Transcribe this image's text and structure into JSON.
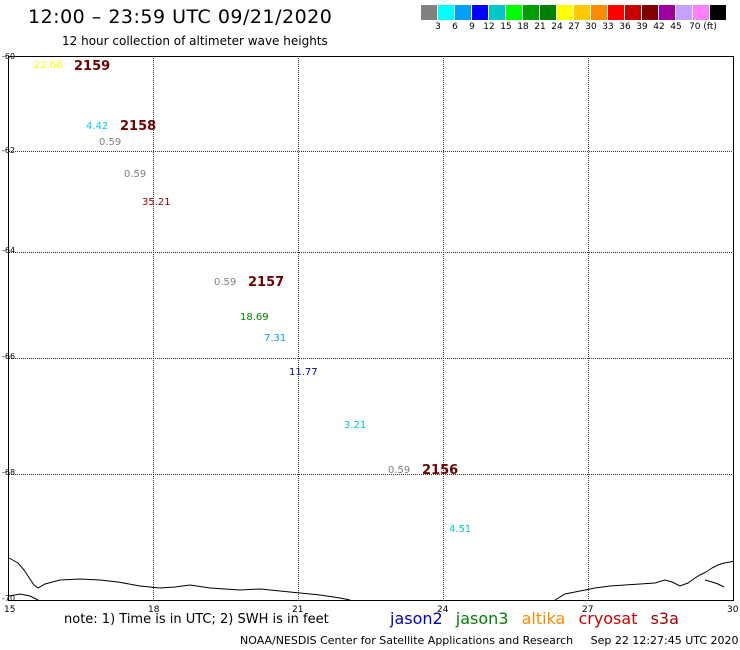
{
  "header": {
    "title": "12:00 – 23:59 UTC 09/21/2020",
    "subtitle": "12 hour collection of altimeter wave heights"
  },
  "legend": {
    "colors": [
      "#808080",
      "#00ffff",
      "#00a0ff",
      "#0000ff",
      "#00c8c8",
      "#00ff00",
      "#00a000",
      "#008000",
      "#ffff00",
      "#ffc800",
      "#ff8c00",
      "#ff0000",
      "#c80000",
      "#800000",
      "#a000a0",
      "#c8a0ff",
      "#ff80ff",
      "#000000"
    ],
    "ticks": [
      "3",
      "6",
      "9",
      "12",
      "15",
      "18",
      "21",
      "24",
      "27",
      "30",
      "33",
      "36",
      "39",
      "42",
      "45",
      "70 (ft)"
    ]
  },
  "axes": {
    "y_ticks": [
      "-60",
      "-62",
      "-64",
      "-66",
      "-68",
      "-70"
    ],
    "x_ticks": [
      "15",
      "18",
      "21",
      "24",
      "27",
      "30"
    ]
  },
  "observations": [
    {
      "text": "22.66",
      "color": "#ffff00"
    },
    {
      "text": "4.42",
      "color": "#00c8ff"
    },
    {
      "text": "0.59",
      "color": "#808080"
    },
    {
      "text": "0.59",
      "color": "#808080"
    },
    {
      "text": "35.21",
      "color": "#a00000"
    },
    {
      "text": "0.59",
      "color": "#808080"
    },
    {
      "text": "18.69",
      "color": "#008000"
    },
    {
      "text": "7.31",
      "color": "#00a0ff"
    },
    {
      "text": "11.77",
      "color": "#0000a0"
    },
    {
      "text": "3.21",
      "color": "#00c8c8"
    },
    {
      "text": "0.59",
      "color": "#808080"
    },
    {
      "text": "4.51",
      "color": "#00c8c8"
    }
  ],
  "passes": [
    "2159",
    "2158",
    "2157",
    "2156"
  ],
  "note": "note: 1) Time is in UTC; 2) SWH is in feet",
  "satellites": [
    {
      "name": "jason2",
      "color": "#0000cc"
    },
    {
      "name": "jason3",
      "color": "#008000"
    },
    {
      "name": "altika",
      "color": "#ff8c00"
    },
    {
      "name": "cryosat",
      "color": "#cc0000"
    },
    {
      "name": "s3a",
      "color": "#a00000"
    }
  ],
  "footer": "NOAA/NESDIS Center for Satellite Applications and Research     Sep 22 12:27:45 UTC 2020"
}
